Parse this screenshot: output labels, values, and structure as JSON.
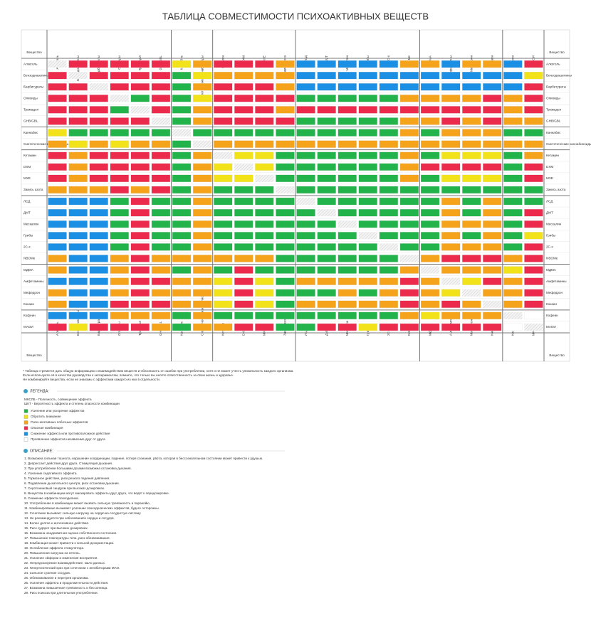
{
  "header": {
    "title": "ТАБЛИЦА СОВМЕСТИМОСТИ ПСИХОАКТИВНЫХ ВЕЩЕСТВ"
  },
  "matrix": {
    "corner_label": "Вещество",
    "group_breaks": [
      6,
      8,
      12,
      18,
      22
    ],
    "substances": [
      "Алкоголь",
      "Бензодиазепины",
      "Барбитураты",
      "Опиоиды",
      "Трамадол",
      "GHB/GBL",
      "Каннабис",
      "Синтетические каннабиноиды",
      "Кетамин",
      "DXM",
      "MXE",
      "Закись азота",
      "ЛСД",
      "ДМТ",
      "Мескалин",
      "Грибы",
      "2C-x",
      "NBOMe",
      "МДМА",
      "Амфетамины",
      "Мефедрон",
      "Кокаин",
      "Кофеин",
      "МАОИ"
    ],
    "cells": [
      [
        null,
        3,
        3,
        3,
        3,
        3,
        1,
        2,
        3,
        3,
        3,
        2,
        4,
        4,
        4,
        4,
        4,
        2,
        2,
        4,
        2,
        2,
        4,
        3
      ],
      [
        3,
        null,
        3,
        3,
        3,
        3,
        0,
        1,
        2,
        2,
        2,
        2,
        4,
        4,
        4,
        4,
        4,
        4,
        4,
        4,
        4,
        4,
        4,
        1
      ],
      [
        3,
        3,
        null,
        3,
        3,
        3,
        0,
        2,
        3,
        3,
        3,
        2,
        4,
        4,
        4,
        4,
        4,
        4,
        4,
        4,
        4,
        4,
        4,
        3
      ],
      [
        3,
        3,
        3,
        null,
        0,
        3,
        0,
        1,
        3,
        3,
        3,
        3,
        0,
        0,
        0,
        0,
        0,
        2,
        2,
        2,
        2,
        3,
        2,
        3
      ],
      [
        3,
        3,
        3,
        0,
        null,
        3,
        0,
        2,
        3,
        3,
        3,
        2,
        3,
        3,
        3,
        3,
        3,
        3,
        3,
        3,
        3,
        3,
        2,
        3
      ],
      [
        3,
        3,
        3,
        3,
        3,
        null,
        0,
        2,
        3,
        3,
        3,
        3,
        0,
        0,
        0,
        0,
        0,
        2,
        2,
        3,
        2,
        3,
        2,
        2
      ],
      [
        1,
        0,
        0,
        0,
        0,
        0,
        null,
        0,
        0,
        0,
        0,
        0,
        0,
        0,
        0,
        0,
        0,
        2,
        0,
        2,
        2,
        2,
        0,
        0
      ],
      [
        2,
        1,
        2,
        1,
        2,
        2,
        0,
        null,
        2,
        2,
        2,
        2,
        2,
        2,
        2,
        2,
        2,
        2,
        2,
        2,
        2,
        2,
        2,
        2
      ],
      [
        3,
        2,
        3,
        3,
        3,
        3,
        0,
        2,
        null,
        1,
        1,
        0,
        0,
        0,
        0,
        0,
        0,
        2,
        0,
        1,
        1,
        1,
        0,
        2
      ],
      [
        3,
        2,
        3,
        3,
        3,
        3,
        0,
        2,
        1,
        null,
        1,
        0,
        0,
        0,
        0,
        0,
        0,
        2,
        3,
        3,
        3,
        3,
        0,
        3
      ],
      [
        3,
        2,
        3,
        3,
        3,
        3,
        0,
        2,
        1,
        1,
        null,
        0,
        0,
        0,
        0,
        0,
        0,
        2,
        0,
        1,
        1,
        1,
        0,
        3
      ],
      [
        2,
        2,
        2,
        3,
        2,
        3,
        0,
        2,
        0,
        0,
        0,
        null,
        0,
        0,
        0,
        0,
        0,
        0,
        0,
        0,
        0,
        0,
        0,
        0
      ],
      [
        4,
        4,
        4,
        0,
        3,
        0,
        0,
        2,
        0,
        0,
        0,
        0,
        null,
        0,
        0,
        0,
        0,
        0,
        0,
        2,
        0,
        2,
        0,
        0
      ],
      [
        4,
        4,
        4,
        0,
        3,
        0,
        0,
        2,
        0,
        0,
        0,
        0,
        0,
        null,
        0,
        0,
        0,
        0,
        0,
        2,
        0,
        2,
        0,
        3
      ],
      [
        4,
        4,
        4,
        0,
        3,
        0,
        0,
        2,
        0,
        0,
        0,
        0,
        0,
        0,
        null,
        0,
        0,
        0,
        0,
        2,
        2,
        2,
        0,
        3
      ],
      [
        4,
        4,
        4,
        0,
        3,
        0,
        0,
        2,
        0,
        0,
        0,
        0,
        0,
        0,
        0,
        null,
        0,
        0,
        0,
        2,
        0,
        2,
        0,
        1
      ],
      [
        4,
        4,
        4,
        0,
        3,
        0,
        0,
        2,
        0,
        0,
        0,
        0,
        0,
        0,
        0,
        0,
        null,
        0,
        0,
        2,
        2,
        2,
        0,
        3
      ],
      [
        2,
        4,
        4,
        2,
        3,
        2,
        2,
        2,
        2,
        2,
        2,
        0,
        0,
        0,
        0,
        0,
        0,
        null,
        2,
        3,
        3,
        3,
        2,
        3
      ],
      [
        2,
        4,
        4,
        2,
        3,
        2,
        0,
        2,
        0,
        3,
        0,
        0,
        0,
        0,
        0,
        0,
        0,
        2,
        null,
        2,
        2,
        2,
        1,
        3
      ],
      [
        4,
        4,
        4,
        2,
        3,
        3,
        2,
        2,
        1,
        3,
        1,
        0,
        2,
        2,
        2,
        2,
        2,
        3,
        2,
        null,
        1,
        3,
        2,
        3
      ],
      [
        2,
        4,
        4,
        2,
        3,
        2,
        2,
        2,
        1,
        3,
        1,
        0,
        0,
        0,
        2,
        0,
        2,
        3,
        2,
        1,
        null,
        2,
        2,
        3
      ],
      [
        2,
        4,
        4,
        3,
        3,
        3,
        2,
        2,
        1,
        3,
        1,
        0,
        2,
        2,
        2,
        2,
        2,
        3,
        2,
        3,
        2,
        null,
        2,
        3
      ],
      [
        4,
        4,
        4,
        2,
        2,
        2,
        0,
        2,
        0,
        0,
        0,
        0,
        0,
        0,
        0,
        0,
        0,
        2,
        1,
        2,
        2,
        2,
        null,
        5
      ],
      [
        3,
        1,
        3,
        3,
        3,
        2,
        0,
        2,
        2,
        3,
        3,
        0,
        0,
        3,
        3,
        1,
        3,
        3,
        3,
        3,
        3,
        3,
        5,
        null
      ]
    ]
  },
  "disclaimer": [
    "* Таблица стремится дать общую информацию о взаимодействии веществ и обезопасить от ошибок при употреблении, хотя и не может учесть уникальность каждого организма.",
    "Если используете её в качестве руководства к экспериментам, помните, что только вы несёте ответственность за свою жизнь и здоровье.",
    "Не комбинируйте вещества, если не знакомы с эффектами каждого из них в отдельности."
  ],
  "legend": {
    "title": "ЛЕГЕНДА:",
    "notes": [
      "МКСЛБ - Полезность, совмещение эффекта",
      "ШКТ - Вероятность эффекта и степень опасности комбинации"
    ],
    "items": [
      {
        "label": "Усиление или ускорение эффектов",
        "color": "#22b34b"
      },
      {
        "label": "Обратить внимание",
        "color": "#f2e21a"
      },
      {
        "label": "Риск негативных побочных эффектов",
        "color": "#f6a31c"
      },
      {
        "label": "Опасная комбинация",
        "color": "#ec2a4b"
      },
      {
        "label": "Снижение эффекта или противоположное действие",
        "color": "#1b8fe3"
      },
      {
        "label": "Проявление эффектов независимо друг от друга",
        "color": "#ffffff"
      }
    ]
  },
  "description": {
    "title": "ОПИСАНИЕ:",
    "items": [
      "1. Возможна сильная тошнота, нарушение координации, падение, потеря сознания, рвота, которая в бессознательном состоянии может привести к удушью.",
      "2. Депрессант действия друг друга. Стимуляция дыхания.",
      "3. При употреблении большими дозами возможна остановка дыхания.",
      "4. Усиление седативного эффекта.",
      "5. Тормозное действие, риск резкого падения давления.",
      "6. Подавление дыхательного центра, риск остановки дыхания.",
      "7. Серотониновый синдром при высоких дозировках.",
      "8. Вещества в комбинации могут маскировать эффекты друг друга, что ведёт к передозировке.",
      "9. Снижение эффекта психоделика.",
      "10. Употребление в комбинации может вызвать сильную тревожность и паранойю.",
      "11. Комбинирование вызывает усиление психоделических эффектов, будьте осторожны.",
      "12. Сочетание вызывает сильную нагрузку на сердечно-сосудистую систему.",
      "13. Не рекомендуется при заболеваниях сердца и сосудов.",
      "14. Более долгое и интенсивное действие.",
      "15. Риск судорог при высоких дозировках.",
      "16. Возможна неадекватная оценка собственного состояния.",
      "17. Повышение температуры тела, риск обезвоживания.",
      "18. Комбинация может привести к сильной дезориентации.",
      "19. Ослабление эффекта стимулятора.",
      "20. Повышенная нагрузка на печень.",
      "21. Усиление эйфории и изменения восприятия.",
      "22. Непредсказуемое взаимодействие, мало данных.",
      "23. Гипертонический криз при сочетании с ингибиторами МАО.",
      "24. Сильное сужение сосудов.",
      "25. Обезвоживание и перегрев организма.",
      "26. Усиление эффекта и продолжительности действия.",
      "27. Возможна повышенная тревожность и бессонница.",
      "28. Риск психоза при длительном употреблении."
    ]
  }
}
